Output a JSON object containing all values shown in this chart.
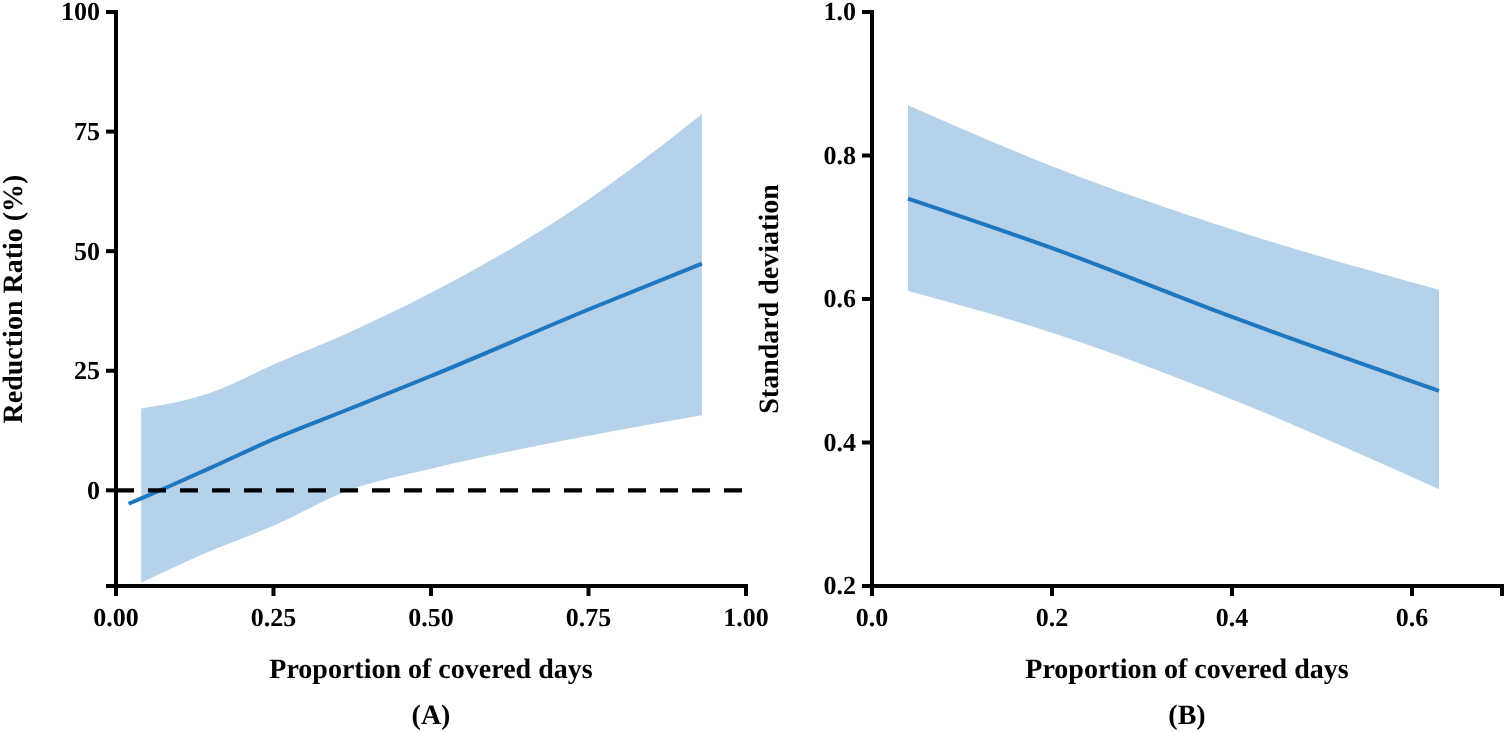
{
  "chart_data": [
    {
      "type": "line",
      "xlabel": "Proportion of covered days",
      "ylabel": "Reduction Ratio (%)",
      "annotations": [
        "(A)"
      ],
      "xlim": [
        0,
        1
      ],
      "xticks": [
        {
          "value": 0,
          "label": "0.00"
        },
        {
          "value": 0.25,
          "label": "0.25"
        },
        {
          "value": 0.5,
          "label": "0.50"
        },
        {
          "value": 0.75,
          "label": "0.75"
        },
        {
          "value": 1,
          "label": "1.00"
        }
      ],
      "ylim": [
        -20,
        100
      ],
      "yticks": [
        0,
        25,
        50,
        75,
        100
      ],
      "grid": false,
      "marker": "none",
      "line_style": "solid",
      "ref_lines": [
        {
          "axis": "y",
          "value": 0,
          "color": "#000000",
          "line_style": "dashed"
        }
      ],
      "series": [
        {
          "color": "#1f77c0",
          "x": [
            0.02,
            0.04,
            0.15,
            0.25,
            0.37,
            0.5,
            0.75,
            0.93
          ],
          "values": [
            -2.8,
            -1.7,
            4.7,
            10.7,
            17,
            23.9,
            37.8,
            47.4
          ],
          "lower": [
            null,
            -19.3,
            -12.7,
            -7.4,
            0,
            4.5,
            11.4,
            15.7
          ],
          "upper": [
            null,
            17.1,
            20.4,
            26.3,
            33,
            41.3,
            60.8,
            78.6
          ]
        }
      ]
    },
    {
      "type": "line",
      "xlabel": "Proportion of covered days",
      "ylabel": "Standard deviation",
      "annotations": [
        "(B)"
      ],
      "xlim": [
        0,
        0.7
      ],
      "xticks": [
        {
          "value": 0,
          "label": "0.0"
        },
        {
          "value": 0.2,
          "label": "0.2"
        },
        {
          "value": 0.4,
          "label": "0.4"
        },
        {
          "value": 0.6,
          "label": "0.6"
        }
      ],
      "ylim": [
        0.2,
        1
      ],
      "yticks": [
        {
          "value": 0.2,
          "label": "0.2"
        },
        {
          "value": 0.4,
          "label": "0.4"
        },
        {
          "value": 0.6,
          "label": "0.6"
        },
        {
          "value": 0.8,
          "label": "0.8"
        },
        {
          "value": 1,
          "label": "1.0"
        }
      ],
      "grid": false,
      "marker": "none",
      "line_style": "solid",
      "series": [
        {
          "color": "#1f77c0",
          "x": [
            0.04,
            0.2,
            0.4,
            0.63
          ],
          "values": [
            0.74,
            0.671,
            0.575,
            0.472
          ],
          "lower": [
            0.611,
            0.553,
            0.46,
            0.335
          ],
          "upper": [
            0.87,
            0.785,
            0.697,
            0.613
          ]
        }
      ]
    }
  ]
}
